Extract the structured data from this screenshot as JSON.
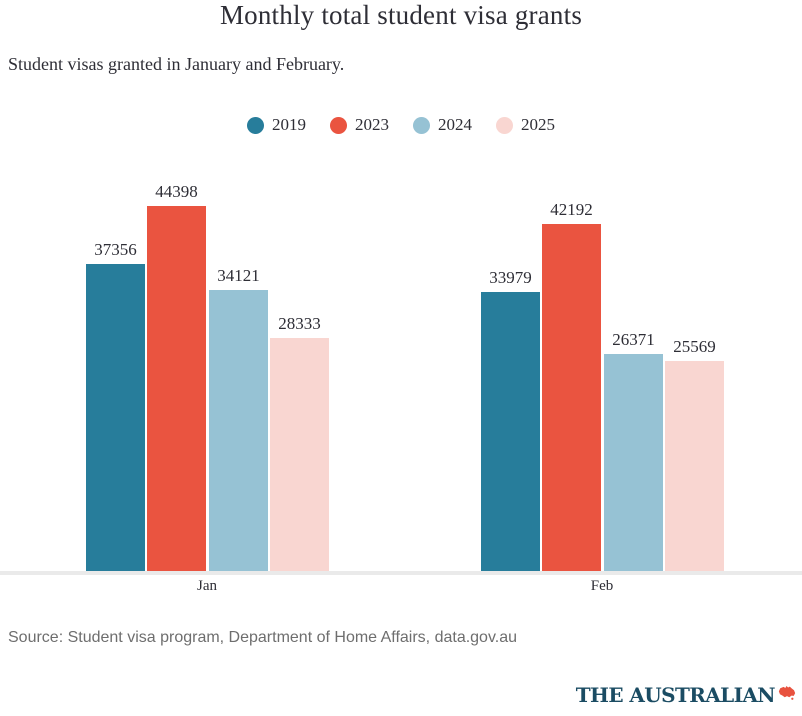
{
  "chart_data": {
    "type": "bar",
    "title": "Monthly total student visa grants",
    "subtitle": "Student visas granted in January and February.",
    "source": "Source: Student visa program, Department of Home Affairs, data.gov.au",
    "categories": [
      "Jan",
      "Feb"
    ],
    "series": [
      {
        "name": "2019",
        "color": "#277d9b",
        "values": [
          37356,
          33979
        ]
      },
      {
        "name": "2023",
        "color": "#ea5440",
        "values": [
          44398,
          42192
        ]
      },
      {
        "name": "2024",
        "color": "#96c2d4",
        "values": [
          34121,
          26371
        ]
      },
      {
        "name": "2025",
        "color": "#f9d6d1",
        "values": [
          28333,
          25569
        ]
      }
    ],
    "value_labels": true,
    "xlabel": "",
    "ylabel": "",
    "ylim": [
      0,
      45000
    ],
    "grid": false,
    "legend_position": "top",
    "axis_line_color": "#eaeaea"
  },
  "branding": {
    "wordmark": "THE AUSTRALIAN",
    "wordmark_color": "#1b4c63",
    "mark_icon": "australia-map-icon",
    "mark_color": "#e8523f"
  }
}
